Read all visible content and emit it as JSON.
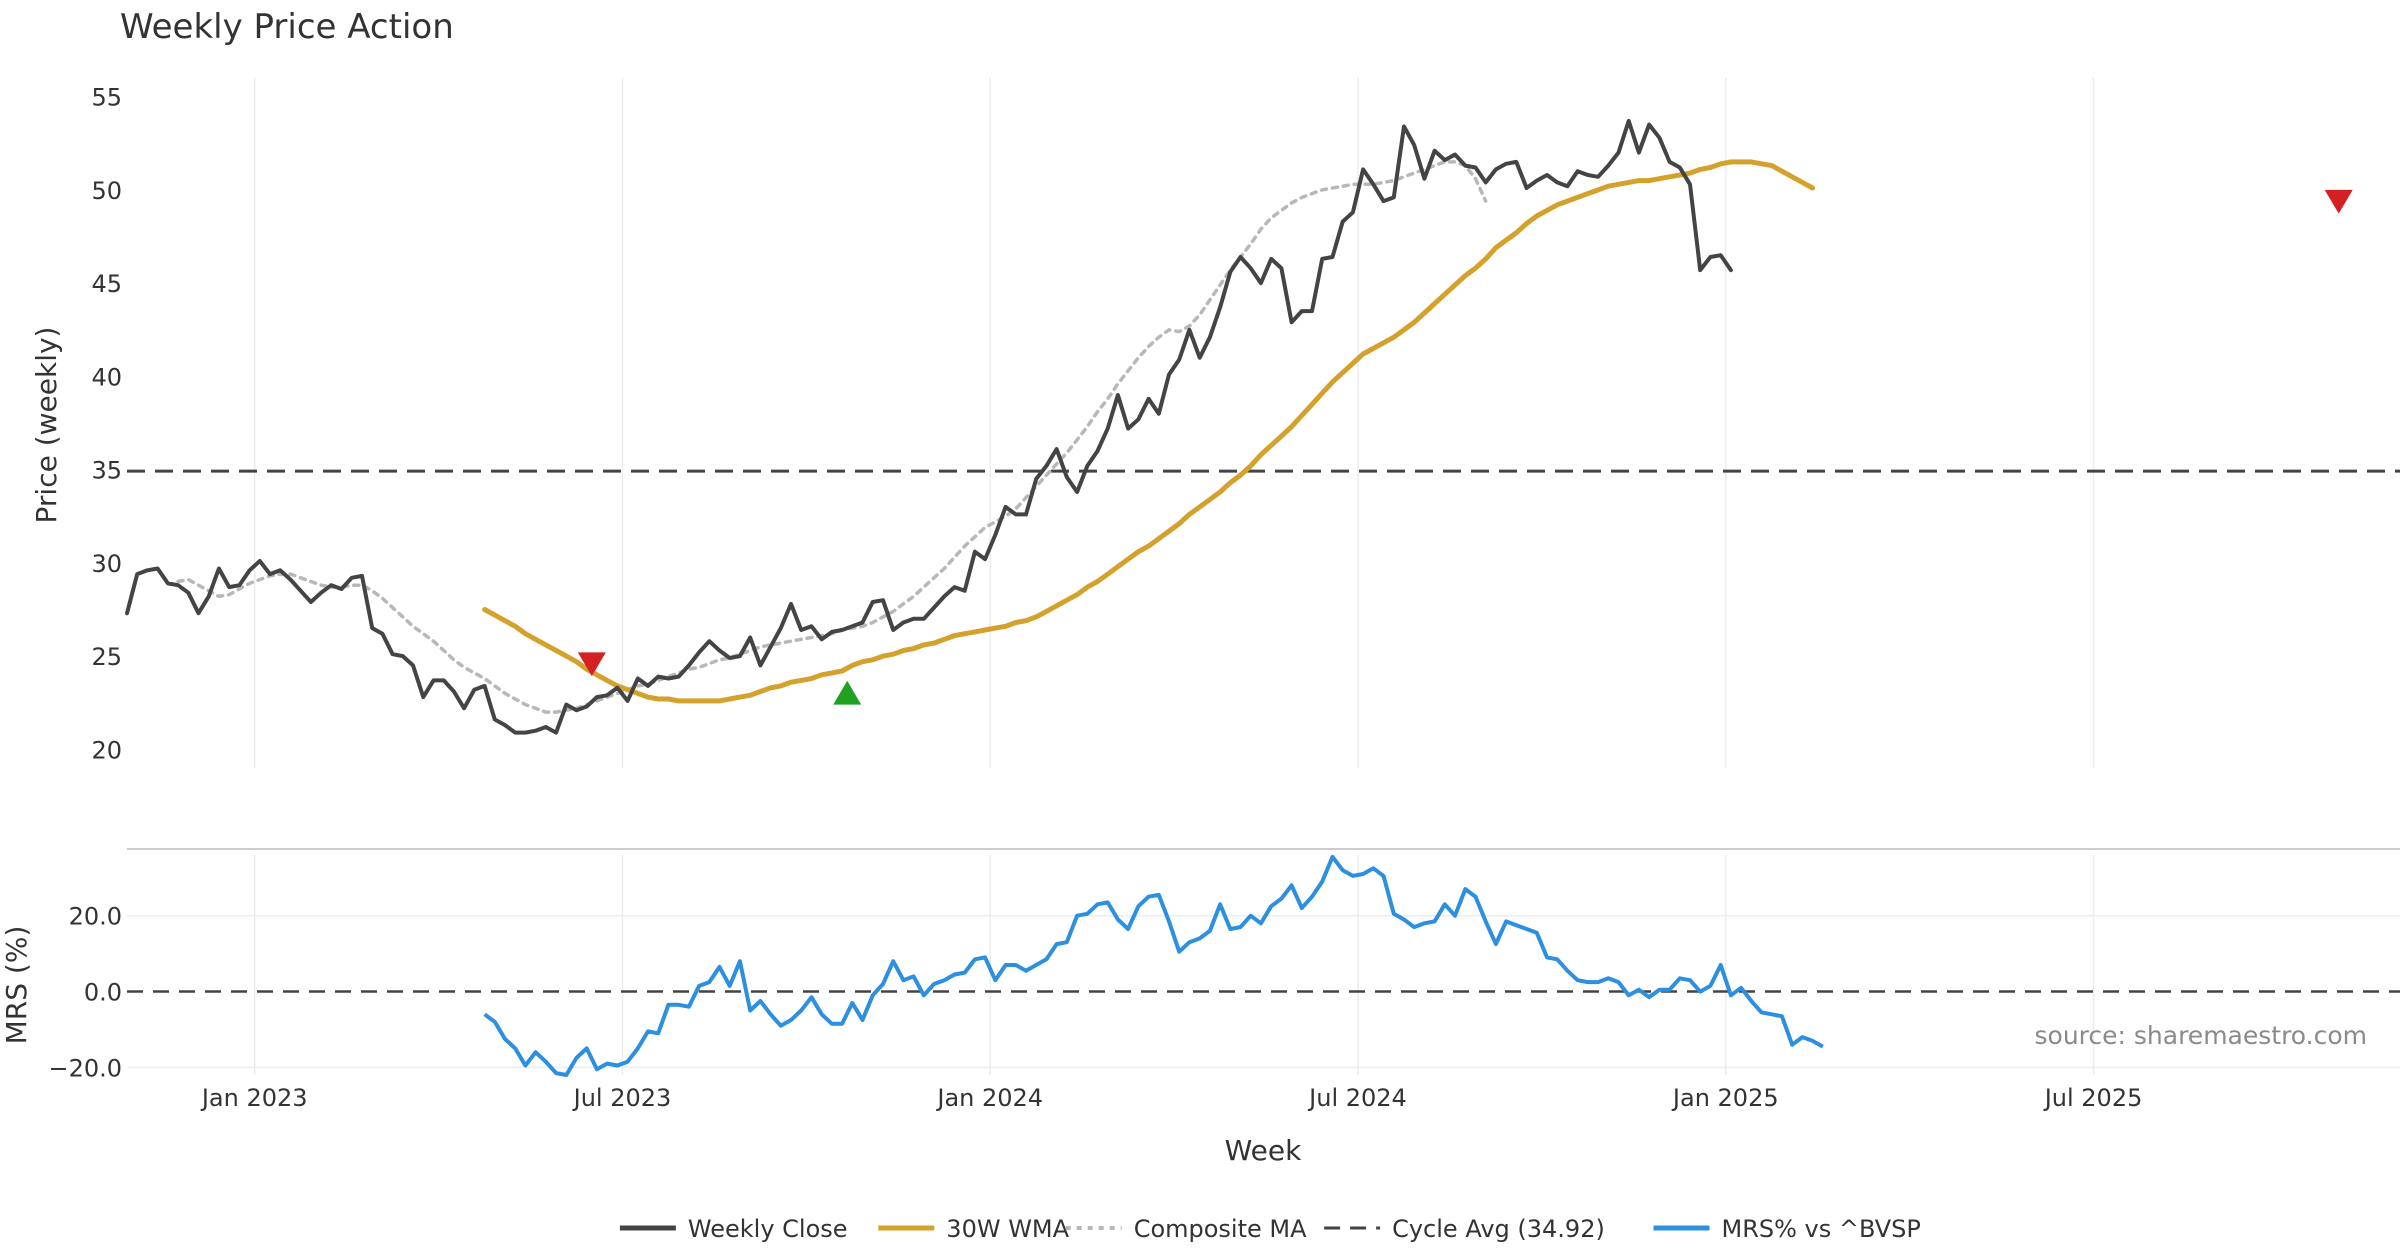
{
  "chart_data": {
    "type": "line",
    "title": "Weekly Price Action",
    "xlabel": "Week",
    "x_ticks": [
      "Jan 2023",
      "Jul 2023",
      "Jan 2024",
      "Jul 2024",
      "Jan 2025",
      "Jul 2025"
    ],
    "x_tick_weeks": [
      10,
      46,
      82,
      118,
      154,
      190
    ],
    "x_range": [
      -2.5,
      220
    ],
    "price_panel": {
      "ylabel": "Price (weekly)",
      "ylim": [
        19,
        56
      ],
      "y_ticks": [
        20,
        25,
        30,
        35,
        40,
        45,
        50,
        55
      ],
      "cycle_avg": 34.92,
      "series": [
        {
          "name": "Weekly Close",
          "color": "#444444",
          "start_week": -2.5,
          "values": [
            27.3,
            29.4,
            29.6,
            29.7,
            28.9,
            28.8,
            28.4,
            27.3,
            28.2,
            29.7,
            28.7,
            28.8,
            29.6,
            30.1,
            29.4,
            29.6,
            29.1,
            28.5,
            27.9,
            28.4,
            28.8,
            28.6,
            29.2,
            29.3,
            26.5,
            26.2,
            25.1,
            25.0,
            24.5,
            22.8,
            23.7,
            23.7,
            23.1,
            22.2,
            23.2,
            23.4,
            21.6,
            21.3,
            20.9,
            20.9,
            21.0,
            21.2,
            20.9,
            22.4,
            22.1,
            22.3,
            22.8,
            22.9,
            23.3,
            22.6,
            23.8,
            23.4,
            23.9,
            23.8,
            23.9,
            24.5,
            25.2,
            25.8,
            25.3,
            24.9,
            25.0,
            26.0,
            24.5,
            25.5,
            26.5,
            27.8,
            26.4,
            26.6,
            25.9,
            26.3,
            26.4,
            26.6,
            26.8,
            27.9,
            28.0,
            26.4,
            26.8,
            27.0,
            27.0,
            27.6,
            28.2,
            28.7,
            28.5,
            30.6,
            30.2,
            31.5,
            33.0,
            32.6,
            32.6,
            34.5,
            35.2,
            36.1,
            34.6,
            33.8,
            35.2,
            36.0,
            37.2,
            39.0,
            37.2,
            37.7,
            38.8,
            38.0,
            40.1,
            40.9,
            42.5,
            41.0,
            42.1,
            43.7,
            45.6,
            46.4,
            45.8,
            45.0,
            46.3,
            45.8,
            42.9,
            43.5,
            43.5,
            46.3,
            46.4,
            48.3,
            48.8,
            51.1,
            50.3,
            49.4,
            49.6,
            53.4,
            52.4,
            50.6,
            52.1,
            51.6,
            51.9,
            51.3,
            51.2,
            50.4,
            51.1,
            51.4,
            51.5,
            50.1,
            50.5,
            50.8,
            50.4,
            50.2,
            51.0,
            50.8,
            50.7,
            51.3,
            52.0,
            53.7,
            52.0,
            53.5,
            52.8,
            51.5,
            51.2,
            50.3,
            45.7,
            46.4,
            46.5,
            45.7
          ]
        },
        {
          "name": "30W WMA",
          "color": "#d4a22c",
          "start_week": 32.5,
          "values": [
            27.5,
            27.2,
            26.9,
            26.6,
            26.2,
            25.9,
            25.6,
            25.3,
            25.0,
            24.7,
            24.3,
            24.0,
            23.7,
            23.4,
            23.2,
            23.0,
            22.8,
            22.7,
            22.7,
            22.6,
            22.6,
            22.6,
            22.6,
            22.6,
            22.7,
            22.8,
            22.9,
            23.1,
            23.3,
            23.4,
            23.6,
            23.7,
            23.8,
            24.0,
            24.1,
            24.2,
            24.5,
            24.7,
            24.8,
            25.0,
            25.1,
            25.3,
            25.4,
            25.6,
            25.7,
            25.9,
            26.1,
            26.2,
            26.3,
            26.4,
            26.5,
            26.6,
            26.8,
            26.9,
            27.1,
            27.4,
            27.7,
            28.0,
            28.3,
            28.7,
            29.0,
            29.4,
            29.8,
            30.2,
            30.6,
            30.9,
            31.3,
            31.7,
            32.1,
            32.6,
            33.0,
            33.4,
            33.8,
            34.3,
            34.7,
            35.2,
            35.8,
            36.3,
            36.8,
            37.3,
            37.9,
            38.5,
            39.1,
            39.7,
            40.2,
            40.7,
            41.2,
            41.5,
            41.8,
            42.1,
            42.5,
            42.9,
            43.4,
            43.9,
            44.4,
            44.9,
            45.4,
            45.8,
            46.3,
            46.9,
            47.3,
            47.7,
            48.2,
            48.6,
            48.9,
            49.2,
            49.4,
            49.6,
            49.8,
            50.0,
            50.2,
            50.3,
            50.4,
            50.5,
            50.5,
            50.6,
            50.7,
            50.8,
            50.9,
            51.1,
            51.2,
            51.4,
            51.5,
            51.5,
            51.5,
            51.4,
            51.3,
            51.0,
            50.7,
            50.4,
            50.1
          ]
        },
        {
          "name": "Composite MA",
          "color": "#b8b8b8",
          "start_week": 2.5,
          "values": [
            29.0,
            29.1,
            28.8,
            28.5,
            28.2,
            28.3,
            28.6,
            28.9,
            29.1,
            29.3,
            29.4,
            29.4,
            29.2,
            29.0,
            28.8,
            28.7,
            28.7,
            28.8,
            28.8,
            28.5,
            28.1,
            27.6,
            27.1,
            26.6,
            26.2,
            25.8,
            25.3,
            24.8,
            24.4,
            24.1,
            23.8,
            23.4,
            23.0,
            22.7,
            22.4,
            22.2,
            22.0,
            22.0,
            22.1,
            22.2,
            22.4,
            22.6,
            22.8,
            23.0,
            23.2,
            23.4,
            23.5,
            23.7,
            23.9,
            24.1,
            24.3,
            24.4,
            24.6,
            24.8,
            24.9,
            25.1,
            25.3,
            25.5,
            25.6,
            25.7,
            25.8,
            25.9,
            26.0,
            26.1,
            26.2,
            26.4,
            26.5,
            26.6,
            26.8,
            27.1,
            27.4,
            27.8,
            28.2,
            28.7,
            29.2,
            29.7,
            30.3,
            30.9,
            31.4,
            31.9,
            32.2,
            32.5,
            32.9,
            33.5,
            34.1,
            34.7,
            35.3,
            35.9,
            36.6,
            37.3,
            38.1,
            38.8,
            39.6,
            40.3,
            41.0,
            41.6,
            42.1,
            42.5,
            42.4,
            42.7,
            43.3,
            44.1,
            44.9,
            45.7,
            46.4,
            47.1,
            47.9,
            48.5,
            48.9,
            49.3,
            49.6,
            49.8,
            50.0,
            50.1,
            50.2,
            50.3,
            50.3,
            50.3,
            50.4,
            50.5,
            50.7,
            50.9,
            51.1,
            51.3,
            51.5,
            51.5,
            51.3,
            50.6,
            49.4
          ]
        }
      ],
      "signals": [
        {
          "type": "sell",
          "week": 43,
          "price": 24.6,
          "color": "#d42020"
        },
        {
          "type": "buy",
          "week": 68,
          "price": 23.0,
          "color": "#22a022"
        },
        {
          "type": "sell",
          "week": 214,
          "price": 49.4,
          "color": "#d42020"
        }
      ]
    },
    "mrs_panel": {
      "ylabel": "MRS (%)",
      "ylim": [
        -22,
        36
      ],
      "y_ticks": [
        -20.0,
        0.0,
        20.0
      ],
      "y_tick_labels": [
        "−20.0",
        "0.0",
        "20.0"
      ],
      "zero_line": 0.0,
      "series": {
        "name": "MRS% vs ^BVSP",
        "color": "#2d8fe0",
        "start_week": 32.5,
        "values": [
          -6.0,
          -8.0,
          -12.5,
          -15.0,
          -19.5,
          -16.0,
          -18.5,
          -21.5,
          -22.0,
          -17.5,
          -15.0,
          -20.5,
          -19.0,
          -19.5,
          -18.5,
          -15.0,
          -10.5,
          -11.0,
          -3.5,
          -3.5,
          -4.0,
          1.5,
          2.5,
          6.5,
          1.5,
          8.0,
          -5.0,
          -2.5,
          -6.0,
          -9.0,
          -7.5,
          -5.0,
          -1.5,
          -6.0,
          -8.5,
          -8.5,
          -3.0,
          -7.5,
          -1.0,
          2.0,
          8.0,
          3.0,
          4.0,
          -1.0,
          2.0,
          3.0,
          4.5,
          5.0,
          8.5,
          9.0,
          3.0,
          7.0,
          7.0,
          5.5,
          7.0,
          8.5,
          12.5,
          13.0,
          20.0,
          20.5,
          23.0,
          23.5,
          19.0,
          16.5,
          22.5,
          25.0,
          25.5,
          18.5,
          10.5,
          13.0,
          14.0,
          16.0,
          23.0,
          16.5,
          17.0,
          20.0,
          18.0,
          22.5,
          24.5,
          28.0,
          22.0,
          25.0,
          29.0,
          35.5,
          32.0,
          30.5,
          31.0,
          32.5,
          30.5,
          20.5,
          19.0,
          17.0,
          18.0,
          18.5,
          23.0,
          20.0,
          27.0,
          25.0,
          18.5,
          12.5,
          18.5,
          17.5,
          16.5,
          15.5,
          9.0,
          8.5,
          5.5,
          3.0,
          2.5,
          2.5,
          3.5,
          2.5,
          -1.0,
          0.5,
          -1.5,
          0.5,
          0.5,
          3.5,
          3.0,
          0.0,
          1.5,
          7.0,
          -1.0,
          1.0,
          -2.5,
          -5.5,
          -6.0,
          -6.5,
          -14.0,
          -12.0,
          -13.0,
          -14.5
        ]
      }
    },
    "legend": {
      "position": "bottom-center",
      "entries": [
        {
          "label": "Weekly Close",
          "style": "solid",
          "color": "#444444"
        },
        {
          "label": "30W WMA",
          "style": "solid",
          "color": "#d4a22c"
        },
        {
          "label": "Composite MA",
          "style": "dotted",
          "color": "#b8b8b8"
        },
        {
          "label": "Cycle Avg (34.92)",
          "style": "dashed",
          "color": "#444444"
        },
        {
          "label": "MRS% vs ^BVSP",
          "style": "solid",
          "color": "#2d8fe0"
        }
      ]
    },
    "annotations": {
      "source": "source: sharemaestro.com"
    },
    "grid": true
  }
}
